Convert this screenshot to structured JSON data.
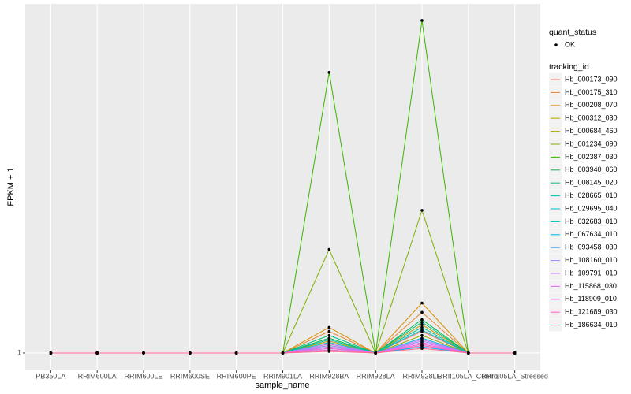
{
  "chart_data": {
    "type": "line",
    "x_label": "sample_name",
    "y_label": "FPKM + 1",
    "categories": [
      "PB350LA",
      "RRIM600LA",
      "RRIM600LE",
      "RRIM600SE",
      "RRIM600PE",
      "RRIM901LA",
      "RRIM928BA",
      "RRIM928LA",
      "RRIM928LE",
      "RRII105LA_Control",
      "RRII105LA_Stressed"
    ],
    "ylim": [
      0.894,
      9.5
    ],
    "yticks": [
      1
    ],
    "yscale": "log10",
    "grid": true,
    "point_legend": {
      "title": "quant_status",
      "labels": [
        "OK"
      ]
    },
    "legend_title": "tracking_id",
    "legend_position": "right",
    "series": [
      {
        "name": "Hb_000173_090",
        "color": "#F8766D",
        "values": [
          1,
          1,
          1,
          1,
          1,
          1,
          1.06,
          1,
          1.15,
          1,
          1
        ]
      },
      {
        "name": "Hb_000175_310",
        "color": "#EA8331",
        "values": [
          1,
          1,
          1,
          1,
          1,
          1,
          1.15,
          1,
          1.3,
          1,
          1
        ]
      },
      {
        "name": "Hb_000208_070",
        "color": "#D89000",
        "values": [
          1,
          1,
          1,
          1,
          1,
          1,
          1.18,
          1,
          1.38,
          1,
          1
        ]
      },
      {
        "name": "Hb_000312_030",
        "color": "#C09B00",
        "values": [
          1,
          1,
          1,
          1,
          1,
          1,
          1.08,
          1,
          1.2,
          1,
          1
        ]
      },
      {
        "name": "Hb_000684_460",
        "color": "#A3A500",
        "values": [
          1,
          1,
          1,
          1,
          1,
          1,
          1.05,
          1,
          1.12,
          1,
          1
        ]
      },
      {
        "name": "Hb_001234_090",
        "color": "#7CAE00",
        "values": [
          1,
          1,
          1,
          1,
          1,
          1,
          1.95,
          1,
          2.51,
          1,
          1
        ]
      },
      {
        "name": "Hb_002387_030",
        "color": "#39B600",
        "values": [
          1,
          1,
          1,
          1,
          1,
          1,
          6.11,
          1,
          8.54,
          1,
          1
        ]
      },
      {
        "name": "Hb_003940_060",
        "color": "#00BB4E",
        "values": [
          1,
          1,
          1,
          1,
          1,
          1,
          1.1,
          1,
          1.24,
          1,
          1
        ]
      },
      {
        "name": "Hb_008145_020",
        "color": "#00BF7D",
        "values": [
          1,
          1,
          1,
          1,
          1,
          1,
          1.12,
          1,
          1.22,
          1,
          1
        ]
      },
      {
        "name": "Hb_028665_010",
        "color": "#00C1A3",
        "values": [
          1,
          1,
          1,
          1,
          1,
          1,
          1.09,
          1,
          1.18,
          1,
          1
        ]
      },
      {
        "name": "Hb_029695_040",
        "color": "#00BFC4",
        "values": [
          1,
          1,
          1,
          1,
          1,
          1,
          1.07,
          1,
          1.16,
          1,
          1
        ]
      },
      {
        "name": "Hb_032683_010",
        "color": "#00BAE0",
        "values": [
          1,
          1,
          1,
          1,
          1,
          1,
          1.04,
          1,
          1.1,
          1,
          1
        ]
      },
      {
        "name": "Hb_067634_010",
        "color": "#00B0F6",
        "values": [
          1,
          1,
          1,
          1,
          1,
          1,
          1.02,
          1,
          1.04,
          1,
          1
        ]
      },
      {
        "name": "Hb_093458_030",
        "color": "#35A2FF",
        "values": [
          1,
          1,
          1,
          1,
          1,
          1,
          1.03,
          1,
          1.05,
          1,
          1
        ]
      },
      {
        "name": "Hb_108160_010",
        "color": "#9590FF",
        "values": [
          1,
          1,
          1,
          1,
          1,
          1,
          1.05,
          1,
          1.08,
          1,
          1
        ]
      },
      {
        "name": "Hb_109791_010",
        "color": "#C77CFF",
        "values": [
          1,
          1,
          1,
          1,
          1,
          1,
          1.06,
          1,
          1.09,
          1,
          1
        ]
      },
      {
        "name": "Hb_115868_030",
        "color": "#E76BF3",
        "values": [
          1,
          1,
          1,
          1,
          1,
          1,
          1.04,
          1,
          1.07,
          1,
          1
        ]
      },
      {
        "name": "Hb_118909_010",
        "color": "#FA62DB",
        "values": [
          1,
          1,
          1,
          1,
          1,
          1,
          1.03,
          1,
          1.06,
          1,
          1
        ]
      },
      {
        "name": "Hb_121689_030",
        "color": "#FF62BC",
        "values": [
          1,
          1,
          1,
          1,
          1,
          1,
          1.02,
          1,
          1.05,
          1,
          1
        ]
      },
      {
        "name": "Hb_186634_010",
        "color": "#FF6C91",
        "values": [
          1,
          1,
          1,
          1,
          1,
          1,
          1.01,
          1,
          1.03,
          1,
          1
        ]
      }
    ]
  }
}
